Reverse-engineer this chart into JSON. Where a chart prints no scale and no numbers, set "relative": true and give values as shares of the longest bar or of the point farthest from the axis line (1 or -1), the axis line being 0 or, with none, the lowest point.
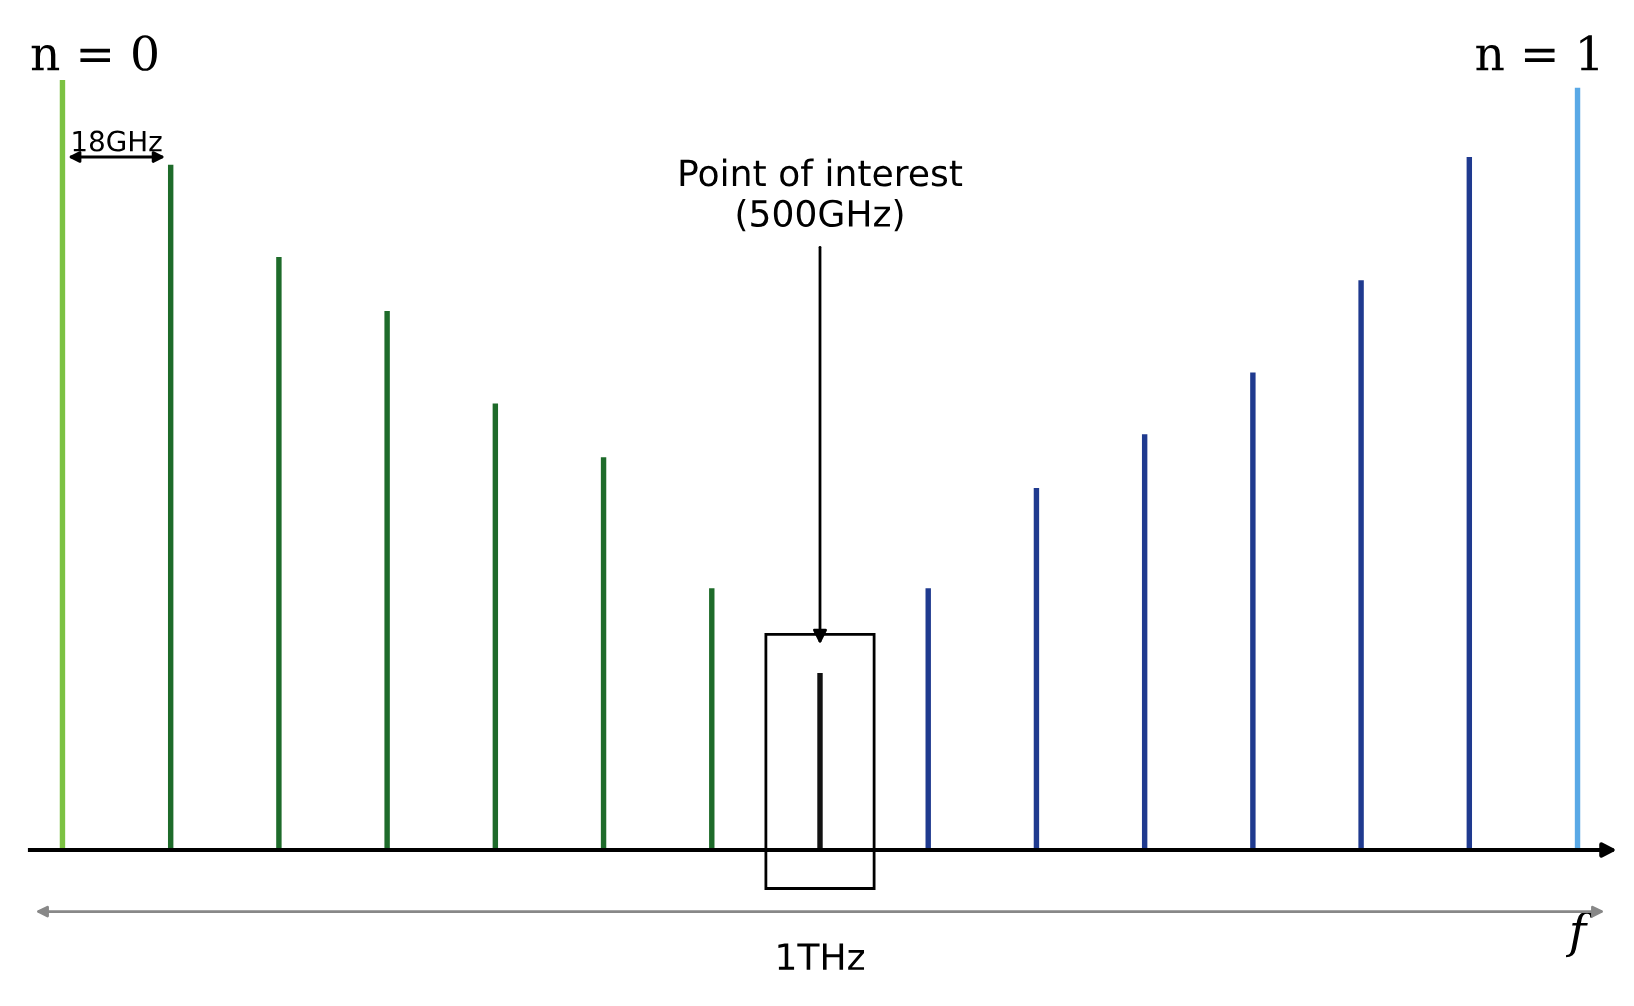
{
  "chart_data": {
    "type": "bar",
    "relative": true,
    "categories": [
      null,
      null,
      null,
      null,
      null,
      null,
      null,
      null,
      null,
      null,
      null,
      null,
      null,
      null,
      null
    ],
    "values": [
      1.0,
      0.89,
      0.77,
      0.7,
      0.58,
      0.51,
      0.34,
      0.23,
      0.34,
      0.47,
      0.54,
      0.62,
      0.74,
      0.9,
      0.99
    ],
    "colors": [
      "#7cc242",
      "#1e6b2a",
      "#1e6b2a",
      "#1e6b2a",
      "#1e6b2a",
      "#1e6b2a",
      "#1e6b2a",
      "#111111",
      "#1f3a8f",
      "#1f3a8f",
      "#1f3a8f",
      "#1f3a8f",
      "#1f3a8f",
      "#1f3a8f",
      "#5aa9e6"
    ],
    "annotations": [
      "n = 0",
      "n = 1",
      "18GHz",
      "Point of interest\n(500GHz)",
      "1THz",
      "f"
    ],
    "grid": false
  }
}
